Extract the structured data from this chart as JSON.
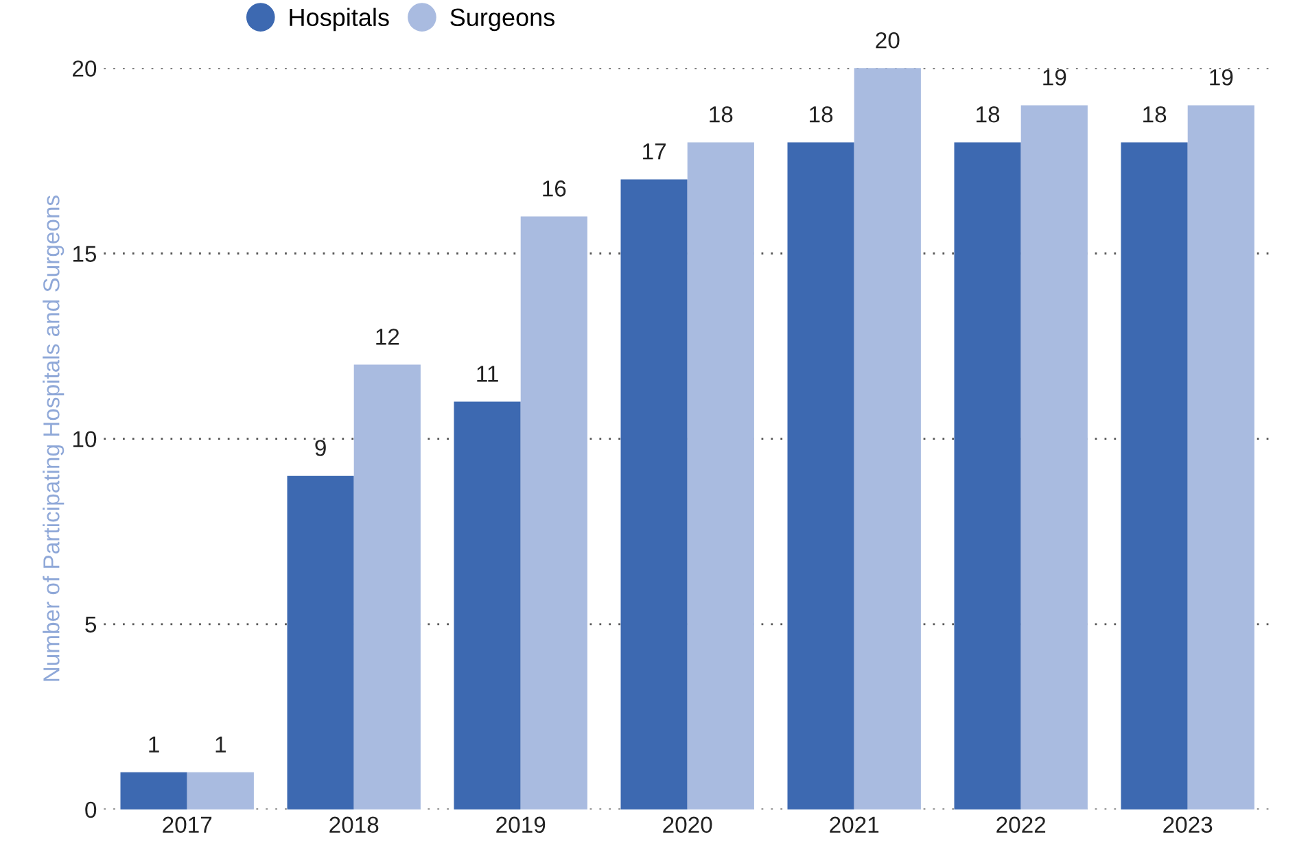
{
  "chart_data": {
    "type": "bar",
    "ylabel": "Number of Participating Hospitals and Surgeons",
    "categories": [
      "2017",
      "2018",
      "2019",
      "2020",
      "2021",
      "2022",
      "2023"
    ],
    "series": [
      {
        "name": "Hospitals",
        "color": "#3d69b1",
        "values": [
          1,
          9,
          11,
          17,
          18,
          18,
          18
        ]
      },
      {
        "name": "Surgeons",
        "color": "#a9bbe0",
        "values": [
          1,
          12,
          16,
          18,
          20,
          19,
          19
        ]
      }
    ],
    "ylim": [
      0,
      20
    ],
    "yticks": [
      0,
      5,
      10,
      15,
      20
    ],
    "grid": "y",
    "legend": "top",
    "data_labels": true
  }
}
